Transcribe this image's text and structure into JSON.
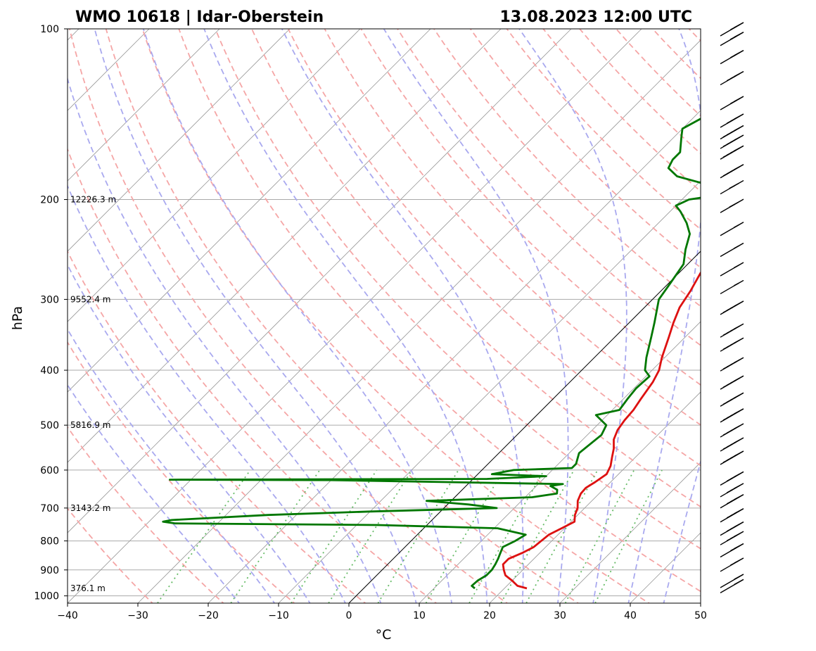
{
  "chart_data": {
    "type": "line",
    "chart_kind": "skew-T log-P sounding",
    "title_left": "WMO 10618 | Idar-Oberstein",
    "title_right": "13.08.2023 12:00 UTC",
    "xlabel": "°C",
    "ylabel": "hPa",
    "xlim": [
      -40,
      50
    ],
    "ylim": [
      1030,
      100
    ],
    "x_ticks": [
      -40,
      -30,
      -20,
      -10,
      0,
      10,
      20,
      30,
      40,
      50
    ],
    "x_tick_labels": [
      "−40",
      "−30",
      "−20",
      "−10",
      "0",
      "10",
      "20",
      "30",
      "40",
      "50"
    ],
    "y_ticks": [
      100,
      200,
      300,
      400,
      500,
      600,
      700,
      800,
      900,
      1000
    ],
    "y_tick_labels": [
      "100",
      "200",
      "300",
      "400",
      "500",
      "600",
      "700",
      "800",
      "900",
      "1000"
    ],
    "height_labels": [
      {
        "pressure": 200,
        "text": "12226.3 m"
      },
      {
        "pressure": 300,
        "text": "9552.4 m"
      },
      {
        "pressure": 500,
        "text": "5816.9 m"
      },
      {
        "pressure": 700,
        "text": "3143.2 m"
      },
      {
        "pressure": 970,
        "text": "376.1 m"
      }
    ],
    "colors": {
      "temperature": "#dd1111",
      "dewpoint": "#007700",
      "dry_adiabat": "#f5a6a6",
      "moist_adiabat": "#a9a9ef",
      "mixing_ratio": "#66bb66",
      "isotherm": "#999999",
      "zero_isotherm": "#000000",
      "isobar": "#aaaaaa"
    },
    "series": [
      {
        "name": "Temperature",
        "values": [
          [
            970,
            23.2
          ],
          [
            960,
            21.5
          ],
          [
            940,
            20.0
          ],
          [
            920,
            18.3
          ],
          [
            900,
            17.3
          ],
          [
            880,
            16.4
          ],
          [
            860,
            16.4
          ],
          [
            840,
            17.5
          ],
          [
            820,
            18.3
          ],
          [
            800,
            18.5
          ],
          [
            780,
            18.7
          ],
          [
            760,
            19.6
          ],
          [
            740,
            20.5
          ],
          [
            720,
            19.6
          ],
          [
            700,
            19.0
          ],
          [
            680,
            18.0
          ],
          [
            660,
            17.4
          ],
          [
            645,
            17.3
          ],
          [
            630,
            17.8
          ],
          [
            610,
            18.3
          ],
          [
            590,
            17.7
          ],
          [
            570,
            16.7
          ],
          [
            550,
            15.7
          ],
          [
            530,
            14.4
          ],
          [
            510,
            13.6
          ],
          [
            490,
            13.2
          ],
          [
            470,
            13.0
          ],
          [
            450,
            12.5
          ],
          [
            420,
            11.8
          ],
          [
            400,
            11.0
          ],
          [
            380,
            9.6
          ],
          [
            350,
            7.7
          ],
          [
            330,
            6.3
          ],
          [
            310,
            5.0
          ],
          [
            290,
            4.2
          ],
          [
            270,
            3.1
          ],
          [
            250,
            2.3
          ],
          [
            230,
            1.0
          ],
          [
            215,
            -0.5
          ],
          [
            205,
            -0.8
          ],
          [
            200,
            0.5
          ],
          [
            190,
            1.6
          ],
          [
            180,
            4.0
          ],
          [
            170,
            6.7
          ],
          [
            160,
            10.4
          ],
          [
            150,
            12.9
          ],
          [
            140,
            14.0
          ],
          [
            130,
            14.9
          ],
          [
            120,
            16.3
          ],
          [
            110,
            17.6
          ],
          [
            100,
            19.5
          ]
        ]
      },
      {
        "name": "Dewpoint",
        "values": [
          [
            970,
            15.8
          ],
          [
            960,
            15.0
          ],
          [
            940,
            15.1
          ],
          [
            920,
            15.6
          ],
          [
            900,
            15.6
          ],
          [
            880,
            15.3
          ],
          [
            860,
            14.9
          ],
          [
            840,
            14.4
          ],
          [
            820,
            13.9
          ],
          [
            800,
            14.8
          ],
          [
            780,
            15.4
          ],
          [
            760,
            10.5
          ],
          [
            750,
            -7.0
          ],
          [
            745,
            -36.0
          ],
          [
            740,
            -38.0
          ],
          [
            735,
            -37.0
          ],
          [
            720,
            -24.0
          ],
          [
            710,
            -10.0
          ],
          [
            700,
            7.5
          ],
          [
            690,
            3.0
          ],
          [
            680,
            -3.5
          ],
          [
            670,
            11.0
          ],
          [
            660,
            14.0
          ],
          [
            650,
            13.5
          ],
          [
            640,
            12.0
          ],
          [
            635,
            13.5
          ],
          [
            625,
            -20.0
          ],
          [
            624,
            -43.0
          ],
          [
            622,
            2.0
          ],
          [
            615,
            10.0
          ],
          [
            610,
            2.0
          ],
          [
            600,
            4.5
          ],
          [
            595,
            12.5
          ],
          [
            585,
            12.5
          ],
          [
            560,
            11.4
          ],
          [
            520,
            12.0
          ],
          [
            500,
            11.3
          ],
          [
            480,
            8.4
          ],
          [
            470,
            11.0
          ],
          [
            450,
            10.6
          ],
          [
            430,
            10.3
          ],
          [
            410,
            10.5
          ],
          [
            400,
            9.0
          ],
          [
            380,
            7.4
          ],
          [
            350,
            5.2
          ],
          [
            330,
            3.6
          ],
          [
            300,
            0.9
          ],
          [
            280,
            0.2
          ],
          [
            260,
            -0.6
          ],
          [
            245,
            -2.4
          ],
          [
            230,
            -4.0
          ],
          [
            220,
            -6.0
          ],
          [
            210,
            -8.5
          ],
          [
            205,
            -10.0
          ],
          [
            200,
            -9.0
          ],
          [
            195,
            -4.0
          ],
          [
            190,
            -7.0
          ],
          [
            182,
            -14.0
          ],
          [
            176,
            -16.4
          ],
          [
            170,
            -17.0
          ],
          [
            165,
            -17.0
          ],
          [
            155,
            -19.0
          ],
          [
            150,
            -20.0
          ],
          [
            140,
            -18.0
          ],
          [
            130,
            -17.0
          ],
          [
            120,
            -16.0
          ],
          [
            110,
            -15.0
          ],
          [
            100,
            -11.0
          ]
        ]
      }
    ],
    "wind_barbs": [
      {
        "pressure": 960,
        "speed_kt": 10
      },
      {
        "pressure": 940,
        "speed_kt": 15
      },
      {
        "pressure": 880,
        "speed_kt": 20
      },
      {
        "pressure": 830,
        "speed_kt": 25
      },
      {
        "pressure": 790,
        "speed_kt": 30
      },
      {
        "pressure": 760,
        "speed_kt": 30
      },
      {
        "pressure": 720,
        "speed_kt": 35
      },
      {
        "pressure": 680,
        "speed_kt": 35
      },
      {
        "pressure": 650,
        "speed_kt": 35
      },
      {
        "pressure": 620,
        "speed_kt": 35
      },
      {
        "pressure": 570,
        "speed_kt": 40
      },
      {
        "pressure": 540,
        "speed_kt": 40
      },
      {
        "pressure": 510,
        "speed_kt": 40
      },
      {
        "pressure": 480,
        "speed_kt": 40
      },
      {
        "pressure": 450,
        "speed_kt": 40
      },
      {
        "pressure": 420,
        "speed_kt": 40
      },
      {
        "pressure": 390,
        "speed_kt": 45
      },
      {
        "pressure": 360,
        "speed_kt": 45
      },
      {
        "pressure": 340,
        "speed_kt": 45
      },
      {
        "pressure": 310,
        "speed_kt": 40
      },
      {
        "pressure": 285,
        "speed_kt": 55
      },
      {
        "pressure": 265,
        "speed_kt": 55
      },
      {
        "pressure": 245,
        "speed_kt": 55
      },
      {
        "pressure": 225,
        "speed_kt": 55
      },
      {
        "pressure": 205,
        "speed_kt": 65
      },
      {
        "pressure": 190,
        "speed_kt": 65
      },
      {
        "pressure": 178,
        "speed_kt": 45
      },
      {
        "pressure": 165,
        "speed_kt": 40
      },
      {
        "pressure": 158,
        "speed_kt": 40
      },
      {
        "pressure": 152,
        "speed_kt": 40
      },
      {
        "pressure": 145,
        "speed_kt": 35
      },
      {
        "pressure": 135,
        "speed_kt": 25
      },
      {
        "pressure": 122,
        "speed_kt": 30
      },
      {
        "pressure": 112,
        "speed_kt": 25
      },
      {
        "pressure": 104,
        "speed_kt": 25
      },
      {
        "pressure": 100,
        "speed_kt": 25
      }
    ]
  }
}
